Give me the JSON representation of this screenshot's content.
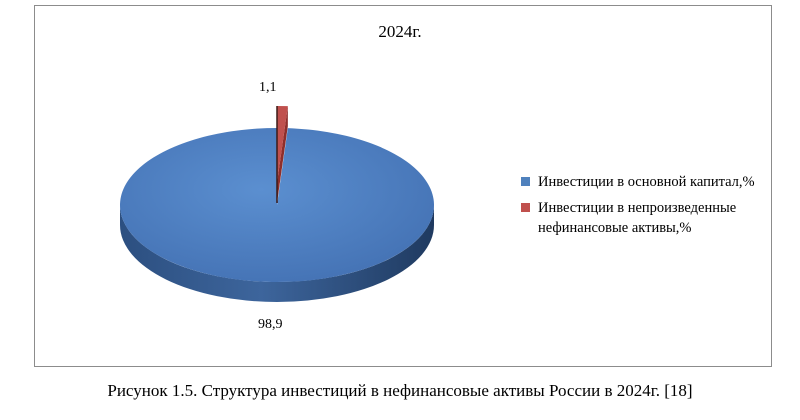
{
  "chart_data": {
    "type": "pie",
    "title": "2024г.",
    "slices": [
      {
        "label": "Инвестиции в основной капитал,%",
        "value": 98.9,
        "value_label": "98,9",
        "color": "#4F81BD"
      },
      {
        "label": "Инвестиции в непроизведенные нефинансовые активы,%",
        "value": 1.1,
        "value_label": "1,1",
        "color": "#C0504D"
      }
    ],
    "legend_position": "right",
    "style": "3d"
  },
  "caption": "Рисунок 1.5. Структура инвестиций в нефинансовые активы России в 2024г. [18]"
}
